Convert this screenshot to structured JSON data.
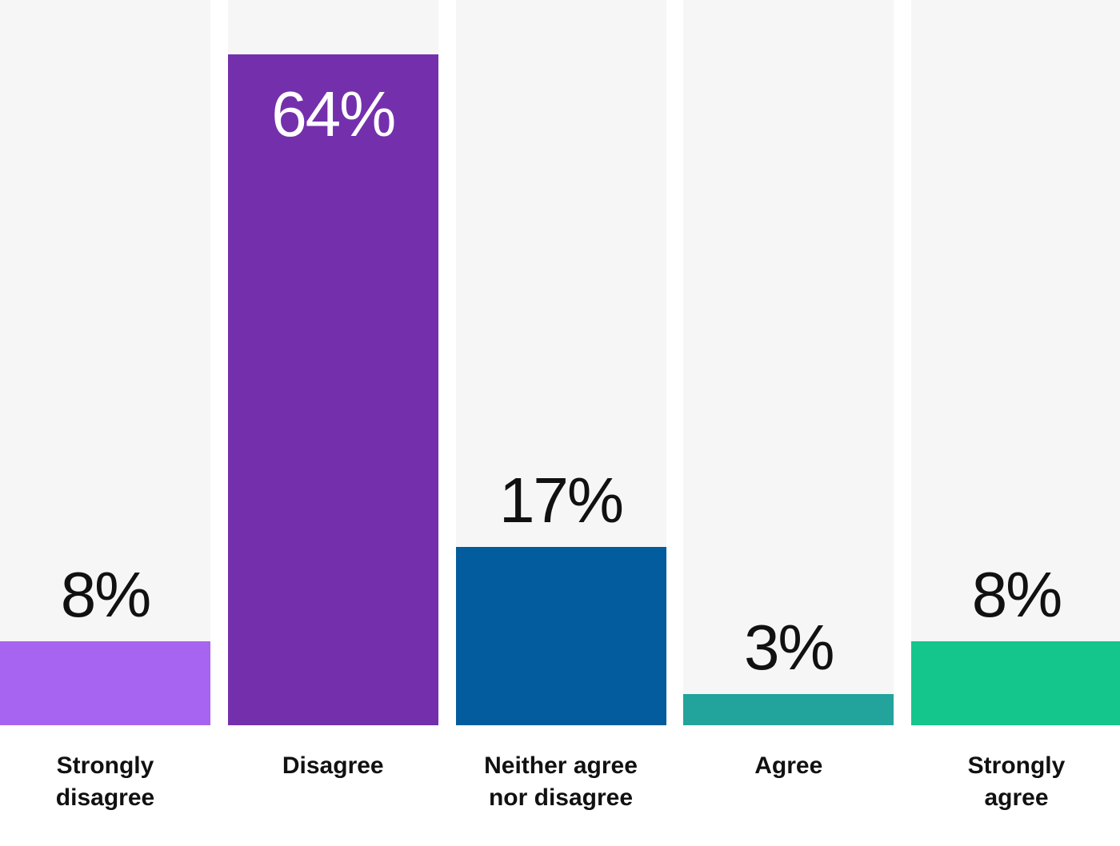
{
  "chart_data": {
    "type": "bar",
    "categories": [
      "Strongly\ndisagree",
      "Disagree",
      "Neither agree\nnor disagree",
      "Agree",
      "Strongly\nagree"
    ],
    "values": [
      8,
      64,
      17,
      3,
      8
    ],
    "value_labels": [
      "8%",
      "64%",
      "17%",
      "3%",
      "8%"
    ],
    "colors": [
      "#a764f0",
      "#7430ac",
      "#025c9d",
      "#22a39c",
      "#14c58c"
    ]
  }
}
